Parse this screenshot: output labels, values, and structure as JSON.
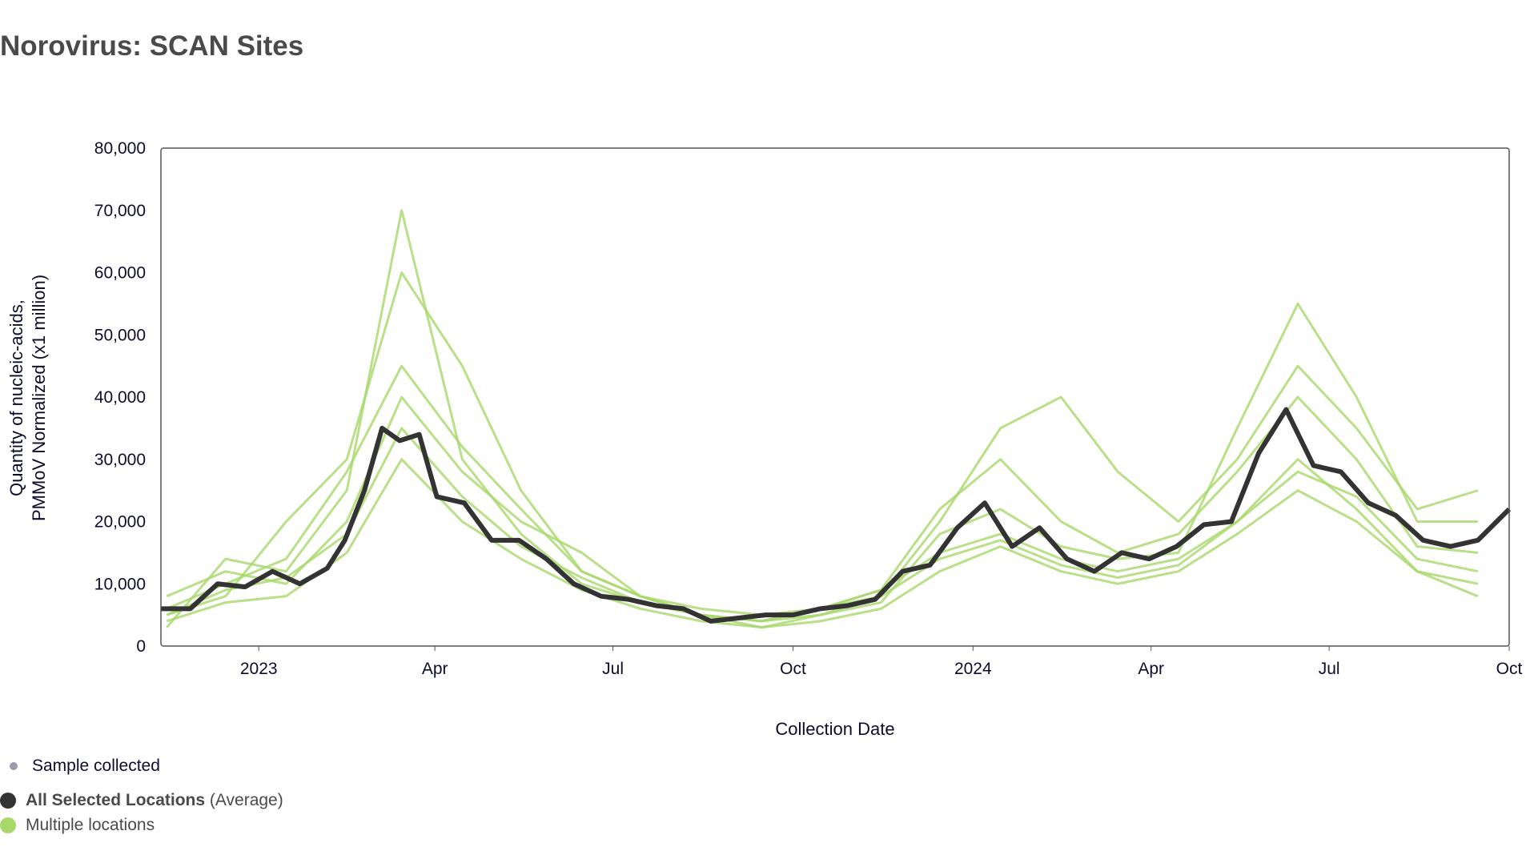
{
  "title": "Norovirus: SCAN Sites",
  "legend": {
    "sample": {
      "label": "Sample collected",
      "color": "#9a9cab"
    },
    "average": {
      "label_bold": "All Selected Locations",
      "label_rest": "(Average)",
      "color": "#333333"
    },
    "sites": {
      "label": "Multiple locations",
      "color": "#a8d86a"
    }
  },
  "chart_data": {
    "type": "line",
    "title": "Norovirus: SCAN Sites",
    "xlabel": "Collection Date",
    "ylabel_lines": [
      "Quantity of nucleic-acids,",
      "PMMoV Normalized (x1 million)"
    ],
    "xlim": [
      "2022-11-12",
      "2024-10-01"
    ],
    "ylim": [
      0,
      80000
    ],
    "grid": false,
    "legend_position": "bottom-left",
    "y_ticks": [
      0,
      10000,
      20000,
      30000,
      40000,
      50000,
      60000,
      70000,
      80000
    ],
    "y_tick_labels": [
      "0",
      "10,000",
      "20,000",
      "30,000",
      "40,000",
      "50,000",
      "60,000",
      "70,000",
      "80,000"
    ],
    "x_ticks": [
      {
        "date": "2023-01-01",
        "label": "2023"
      },
      {
        "date": "2023-04-01",
        "label": "Apr"
      },
      {
        "date": "2023-07-01",
        "label": "Jul"
      },
      {
        "date": "2023-10-01",
        "label": "Oct"
      },
      {
        "date": "2024-01-01",
        "label": "2024"
      },
      {
        "date": "2024-04-01",
        "label": "Apr"
      },
      {
        "date": "2024-07-01",
        "label": "Jul"
      },
      {
        "date": "2024-10-01",
        "label": "Oct"
      }
    ],
    "average_series": {
      "name": "All Selected Locations (Average)",
      "color": "#333333",
      "x": [
        "2022-11-12",
        "2022-11-27",
        "2022-12-11",
        "2022-12-25",
        "2023-01-08",
        "2023-01-22",
        "2023-02-05",
        "2023-02-14",
        "2023-02-24",
        "2023-03-05",
        "2023-03-14",
        "2023-03-24",
        "2023-04-02",
        "2023-04-16",
        "2023-04-30",
        "2023-05-14",
        "2023-05-28",
        "2023-06-11",
        "2023-06-25",
        "2023-07-09",
        "2023-07-23",
        "2023-08-06",
        "2023-08-20",
        "2023-09-03",
        "2023-09-17",
        "2023-10-01",
        "2023-10-15",
        "2023-10-29",
        "2023-11-12",
        "2023-11-26",
        "2023-12-10",
        "2023-12-24",
        "2024-01-07",
        "2024-01-21",
        "2024-02-04",
        "2024-02-18",
        "2024-03-03",
        "2024-03-17",
        "2024-03-31",
        "2024-04-14",
        "2024-04-28",
        "2024-05-12",
        "2024-05-26",
        "2024-06-09",
        "2024-06-23",
        "2024-07-07",
        "2024-07-21",
        "2024-08-04",
        "2024-08-18",
        "2024-09-01",
        "2024-09-15",
        "2024-10-01"
      ],
      "y": [
        6000,
        6000,
        10000,
        9500,
        12000,
        10000,
        12500,
        17000,
        25000,
        35000,
        33000,
        34000,
        24000,
        23000,
        17000,
        17000,
        14000,
        10000,
        8000,
        7500,
        6500,
        6000,
        4000,
        4500,
        5000,
        5000,
        6000,
        6500,
        7500,
        12000,
        13000,
        19000,
        23000,
        16000,
        19000,
        14000,
        12000,
        15000,
        14000,
        16000,
        19500,
        20000,
        31000,
        38000,
        29000,
        28000,
        23000,
        21000,
        17000,
        16000,
        17000,
        22000
      ]
    },
    "site_series": {
      "color": "#a8d86a",
      "x": [
        "2022-11-15",
        "2022-12-15",
        "2023-01-15",
        "2023-02-15",
        "2023-03-15",
        "2023-04-15",
        "2023-05-15",
        "2023-06-15",
        "2023-07-15",
        "2023-08-15",
        "2023-09-15",
        "2023-10-15",
        "2023-11-15",
        "2023-12-15",
        "2024-01-15",
        "2024-02-15",
        "2024-03-15",
        "2024-04-15",
        "2024-05-15",
        "2024-06-15",
        "2024-07-15",
        "2024-08-15",
        "2024-09-15"
      ],
      "series": [
        [
          5000,
          8000,
          20000,
          30000,
          60000,
          45000,
          25000,
          12000,
          8000,
          5000,
          4000,
          6000,
          8000,
          20000,
          35000,
          40000,
          28000,
          20000,
          30000,
          45000,
          35000,
          22000,
          25000
        ],
        [
          3000,
          14000,
          12000,
          25000,
          70000,
          30000,
          18000,
          10000,
          7000,
          5000,
          3000,
          5000,
          7000,
          18000,
          22000,
          16000,
          14000,
          15000,
          35000,
          55000,
          40000,
          20000,
          20000
        ],
        [
          8000,
          12000,
          10000,
          20000,
          40000,
          28000,
          20000,
          15000,
          8000,
          5000,
          4000,
          6000,
          9000,
          15000,
          18000,
          14000,
          12000,
          14000,
          20000,
          30000,
          22000,
          12000,
          10000
        ],
        [
          4000,
          7000,
          8000,
          15000,
          30000,
          20000,
          14000,
          9000,
          6000,
          4000,
          3000,
          4000,
          6000,
          12000,
          16000,
          12000,
          10000,
          12000,
          18000,
          25000,
          20000,
          12000,
          8000
        ],
        [
          6000,
          10000,
          14000,
          28000,
          45000,
          32000,
          22000,
          12000,
          8000,
          6000,
          5000,
          6000,
          9000,
          22000,
          30000,
          20000,
          15000,
          18000,
          28000,
          40000,
          30000,
          16000,
          15000
        ],
        [
          5000,
          9000,
          11000,
          18000,
          35000,
          24000,
          16000,
          11000,
          7000,
          5000,
          4000,
          5000,
          8000,
          14000,
          17000,
          13000,
          11000,
          13000,
          20000,
          28000,
          24000,
          14000,
          12000
        ]
      ]
    }
  }
}
